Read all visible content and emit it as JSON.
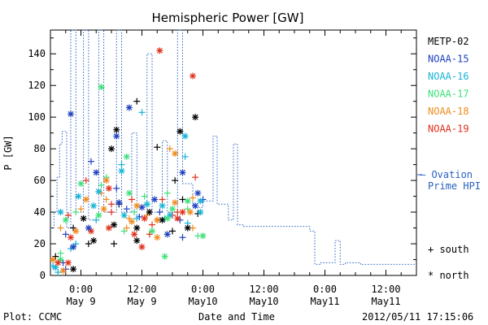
{
  "chart_data": {
    "type": "scatter",
    "title": "Hemispheric Power [GW]",
    "ylabel": "P [GW]",
    "xlabel": "Date and Time",
    "ylim": [
      0,
      155
    ],
    "y_ticks": [
      0,
      20,
      40,
      60,
      80,
      100,
      120,
      140
    ],
    "x_ticks": [
      {
        "hour": 0,
        "time": "0:00",
        "date": "May 9"
      },
      {
        "hour": 12,
        "time": "12:00",
        "date": "May 9"
      },
      {
        "hour": 24,
        "time": "0:00",
        "date": "May10"
      },
      {
        "hour": 36,
        "time": "12:00",
        "date": "May10"
      },
      {
        "hour": 48,
        "time": "0:00",
        "date": "May11"
      },
      {
        "hour": 60,
        "time": "12:00",
        "date": "May11"
      }
    ],
    "xlim_hours": [
      -6,
      66
    ],
    "footer_left": "Plot: CCMC",
    "footer_right": "2012/05/11 17:15:06",
    "legend": [
      {
        "name": "METP-02",
        "color": "#000000"
      },
      {
        "name": "NOAA-15",
        "color": "#1f3fbf"
      },
      {
        "name": "NOAA-16",
        "color": "#17b4d6"
      },
      {
        "name": "NOAA-17",
        "color": "#3ee07a"
      },
      {
        "name": "NOAA-18",
        "color": "#f08a1c"
      },
      {
        "name": "NOAA-19",
        "color": "#e0301c"
      }
    ],
    "ovation": {
      "label_line1": "— Ovation",
      "label_line2": "Prime HPI",
      "color": "#2860c0",
      "points": [
        [
          -6,
          30
        ],
        [
          -5.3,
          30
        ],
        [
          -5.3,
          40
        ],
        [
          -4.7,
          40
        ],
        [
          -4.7,
          62
        ],
        [
          -4.2,
          62
        ],
        [
          -4.2,
          83
        ],
        [
          -3.7,
          83
        ],
        [
          -3.7,
          91
        ],
        [
          -2.8,
          91
        ],
        [
          -2.8,
          30
        ],
        [
          -2.0,
          30
        ],
        [
          -2.0,
          155
        ],
        [
          -1.0,
          155
        ],
        [
          -1.0,
          40
        ],
        [
          0.5,
          40
        ],
        [
          0.5,
          155
        ],
        [
          1.5,
          155
        ],
        [
          1.5,
          35
        ],
        [
          3.5,
          35
        ],
        [
          3.5,
          155
        ],
        [
          4.5,
          155
        ],
        [
          4.5,
          40
        ],
        [
          7,
          40
        ],
        [
          7,
          155
        ],
        [
          8,
          155
        ],
        [
          8,
          40
        ],
        [
          10,
          40
        ],
        [
          10,
          90
        ],
        [
          11,
          90
        ],
        [
          11,
          38
        ],
        [
          13,
          38
        ],
        [
          13,
          140
        ],
        [
          14,
          140
        ],
        [
          14,
          40
        ],
        [
          16,
          40
        ],
        [
          16,
          85
        ],
        [
          17,
          85
        ],
        [
          17,
          40
        ],
        [
          19,
          40
        ],
        [
          19,
          155
        ],
        [
          20,
          155
        ],
        [
          20,
          58
        ],
        [
          22,
          58
        ],
        [
          22,
          43
        ],
        [
          24,
          43
        ],
        [
          24,
          47
        ],
        [
          26,
          47
        ],
        [
          26,
          88
        ],
        [
          26.8,
          88
        ],
        [
          26.8,
          45
        ],
        [
          29,
          45
        ],
        [
          29,
          35
        ],
        [
          30,
          35
        ],
        [
          30,
          83
        ],
        [
          30.8,
          83
        ],
        [
          30.8,
          32
        ],
        [
          32,
          32
        ],
        [
          32,
          31
        ],
        [
          45,
          31
        ],
        [
          45,
          28
        ],
        [
          46,
          28
        ],
        [
          46,
          7
        ],
        [
          47,
          7
        ],
        [
          47,
          8
        ],
        [
          50,
          8
        ],
        [
          50,
          22
        ],
        [
          51,
          22
        ],
        [
          51,
          7
        ],
        [
          52,
          7
        ],
        [
          52,
          8
        ],
        [
          55,
          8
        ],
        [
          55,
          7
        ],
        [
          66,
          7
        ]
      ]
    },
    "south": [
      [
        -5,
        12
      ],
      [
        -3.5,
        8
      ],
      [
        -2,
        17
      ],
      [
        -1,
        40
      ],
      [
        0,
        42
      ],
      [
        1,
        60
      ],
      [
        1.5,
        20
      ],
      [
        2,
        72
      ],
      [
        3,
        35
      ],
      [
        4,
        57
      ],
      [
        5,
        48
      ],
      [
        6,
        45
      ],
      [
        6.5,
        20
      ],
      [
        7,
        55
      ],
      [
        8,
        70
      ],
      [
        8.5,
        28
      ],
      [
        9.5,
        36
      ],
      [
        10,
        48
      ],
      [
        11,
        110
      ],
      [
        11.5,
        37
      ],
      [
        12,
        103
      ],
      [
        12.5,
        50
      ],
      [
        13,
        38
      ],
      [
        14,
        32
      ],
      [
        15,
        81
      ],
      [
        15.5,
        40
      ],
      [
        16.5,
        36
      ],
      [
        17,
        52
      ],
      [
        17.5,
        80
      ],
      [
        18,
        38
      ],
      [
        18.5,
        60
      ],
      [
        19.5,
        35
      ],
      [
        20.5,
        75
      ],
      [
        21,
        42
      ],
      [
        22,
        49
      ],
      [
        22.5,
        62
      ],
      [
        23,
        39
      ],
      [
        24,
        48
      ],
      [
        -5.5,
        6
      ],
      [
        -4,
        14
      ],
      [
        9,
        30
      ],
      [
        13.5,
        26
      ],
      [
        20,
        48
      ],
      [
        -3,
        4
      ],
      [
        -4.5,
        2
      ],
      [
        10.5,
        40
      ],
      [
        -4,
        30
      ],
      [
        -2.5,
        38
      ],
      [
        -1.5,
        30
      ],
      [
        -3,
        26
      ],
      [
        -1,
        20
      ],
      [
        5,
        62
      ],
      [
        4,
        52
      ],
      [
        6,
        40
      ],
      [
        7.5,
        45
      ],
      [
        9,
        42
      ],
      [
        11,
        36
      ],
      [
        13,
        45
      ],
      [
        15,
        35
      ],
      [
        16,
        48
      ],
      [
        18,
        28
      ],
      [
        20,
        24
      ],
      [
        21,
        33
      ],
      [
        23,
        25
      ],
      [
        22,
        30
      ],
      [
        19,
        40
      ]
    ],
    "north": [
      [
        -5,
        5
      ],
      [
        -4,
        10
      ],
      [
        -3.5,
        3
      ],
      [
        -2.5,
        8
      ],
      [
        -1.5,
        4
      ],
      [
        -2,
        102
      ],
      [
        -0.5,
        50
      ],
      [
        0,
        58
      ],
      [
        1,
        48
      ],
      [
        2,
        28
      ],
      [
        2.5,
        22
      ],
      [
        3,
        65
      ],
      [
        3.5,
        53
      ],
      [
        4,
        119
      ],
      [
        5,
        60
      ],
      [
        5.5,
        30
      ],
      [
        6,
        80
      ],
      [
        7,
        88
      ],
      [
        8,
        66
      ],
      [
        9,
        75
      ],
      [
        10,
        34
      ],
      [
        10.5,
        26
      ],
      [
        11,
        30
      ],
      [
        12,
        43
      ],
      [
        13,
        45
      ],
      [
        14,
        28
      ],
      [
        15,
        35
      ],
      [
        15.5,
        142
      ],
      [
        16,
        35
      ],
      [
        17,
        26
      ],
      [
        17.5,
        38
      ],
      [
        18,
        42
      ],
      [
        18.5,
        77
      ],
      [
        19,
        36
      ],
      [
        19.5,
        91
      ],
      [
        20,
        65
      ],
      [
        20.5,
        88
      ],
      [
        21,
        47
      ],
      [
        21.5,
        40
      ],
      [
        22,
        126
      ],
      [
        22.5,
        100
      ],
      [
        23,
        52
      ],
      [
        23.5,
        47
      ],
      [
        24,
        25
      ],
      [
        -5.5,
        10
      ],
      [
        -4.5,
        8
      ],
      [
        7,
        92
      ],
      [
        9.5,
        106
      ],
      [
        -4,
        40
      ],
      [
        -3,
        35
      ],
      [
        -1,
        28
      ],
      [
        -2,
        24
      ],
      [
        0.5,
        36
      ],
      [
        1.5,
        30
      ],
      [
        2.5,
        44
      ],
      [
        3.5,
        38
      ],
      [
        4.5,
        42
      ],
      [
        5.5,
        55
      ],
      [
        6.5,
        32
      ],
      [
        7.5,
        46
      ],
      [
        8.5,
        38
      ],
      [
        9.5,
        52
      ],
      [
        11,
        44
      ],
      [
        12.5,
        36
      ],
      [
        13.5,
        40
      ],
      [
        14.5,
        48
      ],
      [
        16,
        44
      ],
      [
        17,
        36
      ],
      [
        18.5,
        46
      ],
      [
        20,
        40
      ],
      [
        21,
        30
      ],
      [
        22.5,
        44
      ],
      [
        23.5,
        40
      ],
      [
        16.5,
        12
      ],
      [
        15,
        24
      ],
      [
        12,
        18
      ],
      [
        11,
        22
      ],
      [
        -1.5,
        18
      ]
    ],
    "markers": {
      "south_label": "+ south",
      "north_label": "* north"
    }
  }
}
